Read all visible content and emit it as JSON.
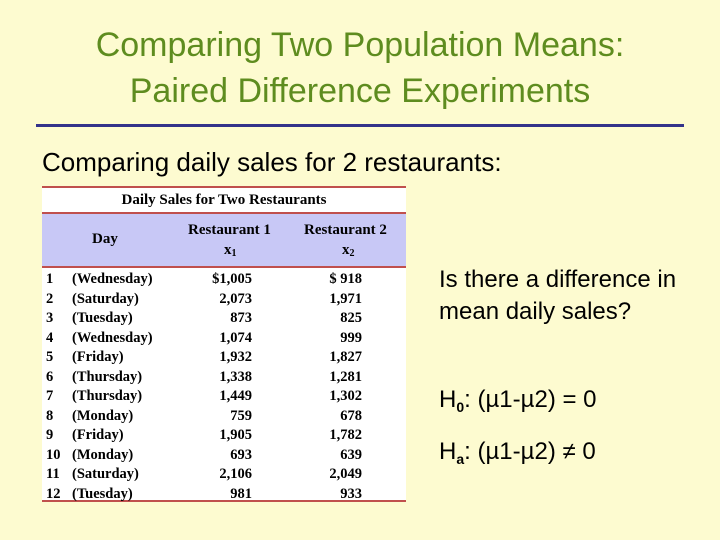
{
  "slide": {
    "title_line1": "Comparing Two Population Means:",
    "title_line2": "Paired Difference Experiments",
    "subtitle": "Comparing daily sales for 2 restaurants:"
  },
  "table": {
    "title": "Daily Sales for Two Restaurants",
    "col_day": "Day",
    "col_r1": "Restaurant 1",
    "col_r1_var": "x",
    "col_r1_sub": "1",
    "col_r2": "Restaurant 2",
    "col_r2_var": "x",
    "col_r2_sub": "2",
    "rows": [
      {
        "num": "1",
        "day": "(Wednesday)",
        "r1": "$1,005",
        "r2": "$ 918"
      },
      {
        "num": "2",
        "day": "(Saturday)",
        "r1": "2,073",
        "r2": "1,971"
      },
      {
        "num": "3",
        "day": "(Tuesday)",
        "r1": "873",
        "r2": "825"
      },
      {
        "num": "4",
        "day": "(Wednesday)",
        "r1": "1,074",
        "r2": "999"
      },
      {
        "num": "5",
        "day": "(Friday)",
        "r1": "1,932",
        "r2": "1,827"
      },
      {
        "num": "6",
        "day": "(Thursday)",
        "r1": "1,338",
        "r2": "1,281"
      },
      {
        "num": "7",
        "day": "(Thursday)",
        "r1": "1,449",
        "r2": "1,302"
      },
      {
        "num": "8",
        "day": "(Monday)",
        "r1": "759",
        "r2": "678"
      },
      {
        "num": "9",
        "day": "(Friday)",
        "r1": "1,905",
        "r2": "1,782"
      },
      {
        "num": "10",
        "day": "(Monday)",
        "r1": "693",
        "r2": "639"
      },
      {
        "num": "11",
        "day": "(Saturday)",
        "r1": "2,106",
        "r2": "2,049"
      },
      {
        "num": "12",
        "day": "(Tuesday)",
        "r1": "981",
        "r2": "933"
      }
    ]
  },
  "question": "Is there a difference in mean daily sales?",
  "hypotheses": {
    "h0_letter": "H",
    "h0_sub": "0",
    "h0_rest": ": (µ1-µ2) = 0",
    "ha_letter": "H",
    "ha_sub": "a",
    "ha_rest": ": (µ1-µ2) ≠ 0"
  },
  "colors": {
    "title": "#5e8c1f",
    "rule": "#33338a",
    "background": "#fdfbd0",
    "table_header": "#c8c8f6",
    "table_border": "#c0504d"
  }
}
